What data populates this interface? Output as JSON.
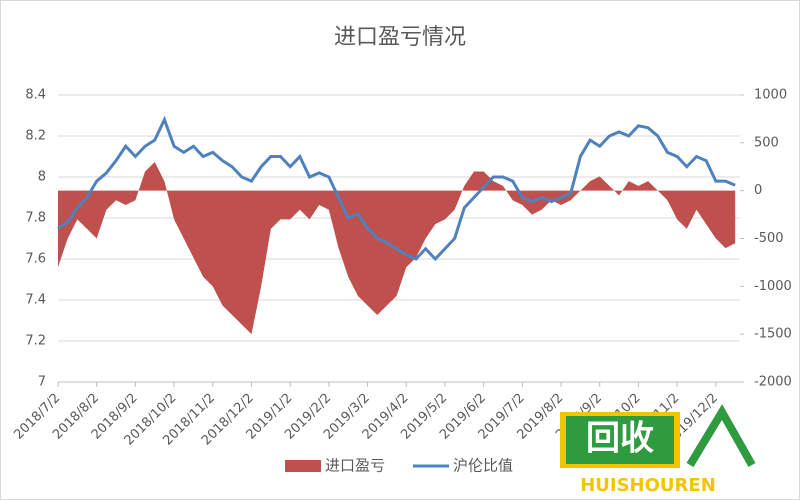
{
  "chart_data": {
    "type": "combo",
    "title": "进口盈亏情况",
    "categories": [
      "2018/7/2",
      null,
      null,
      null,
      "2018/8/2",
      null,
      null,
      null,
      "2018/9/2",
      null,
      null,
      null,
      "2018/10/2",
      null,
      null,
      null,
      "2018/11/2",
      null,
      null,
      null,
      "2018/12/2",
      null,
      null,
      null,
      "2019/1/2",
      null,
      null,
      null,
      "2019/2/2",
      null,
      null,
      null,
      "2019/3/2",
      null,
      null,
      null,
      "2019/4/2",
      null,
      null,
      null,
      "2019/5/2",
      null,
      null,
      null,
      "2019/6/2",
      null,
      null,
      null,
      "2019/7/2",
      null,
      null,
      null,
      "2019/8/2",
      null,
      null,
      null,
      "2019/9/2",
      null,
      null,
      null,
      "2019/10/2",
      null,
      null,
      null,
      "2019/11/2",
      null,
      null,
      null,
      "2019/12/2",
      null,
      null
    ],
    "series": [
      {
        "name": "进口盈亏",
        "kind": "area",
        "axis": "y2",
        "color": "#c0504d",
        "values": [
          -800,
          -500,
          -300,
          -400,
          -500,
          -200,
          -100,
          -150,
          -100,
          200,
          300,
          100,
          -300,
          -500,
          -700,
          -900,
          -1000,
          -1200,
          -1300,
          -1400,
          -1500,
          -1000,
          -400,
          -300,
          -300,
          -200,
          -300,
          -150,
          -200,
          -600,
          -900,
          -1100,
          -1200,
          -1300,
          -1200,
          -1100,
          -800,
          -700,
          -500,
          -350,
          -300,
          -200,
          50,
          200,
          200,
          100,
          50,
          -100,
          -150,
          -250,
          -200,
          -100,
          -150,
          -100,
          0,
          100,
          150,
          50,
          -50,
          100,
          50,
          100,
          0,
          -100,
          -300,
          -400,
          -200,
          -350,
          -500,
          -600,
          -550
        ]
      },
      {
        "name": "沪伦比值",
        "kind": "line",
        "color": "#4f81bd",
        "values": [
          7.75,
          7.78,
          7.85,
          7.9,
          7.98,
          8.02,
          8.08,
          8.15,
          8.1,
          8.15,
          8.18,
          8.28,
          8.15,
          8.12,
          8.15,
          8.1,
          8.12,
          8.08,
          8.05,
          8.0,
          7.98,
          8.05,
          8.1,
          8.1,
          8.05,
          8.1,
          8.0,
          8.02,
          8.0,
          7.9,
          7.8,
          7.82,
          7.75,
          7.7,
          7.68,
          7.65,
          7.62,
          7.6,
          7.65,
          7.6,
          7.65,
          7.7,
          7.85,
          7.9,
          7.95,
          8.0,
          8.0,
          7.98,
          7.9,
          7.88,
          7.9,
          7.88,
          7.9,
          7.92,
          8.1,
          8.18,
          8.15,
          8.2,
          8.22,
          8.2,
          8.25,
          8.24,
          8.2,
          8.12,
          8.1,
          8.05,
          8.1,
          8.08,
          7.98,
          7.98,
          7.96
        ]
      }
    ],
    "ylim": [
      7,
      8.4
    ],
    "yticks": [
      7,
      7.2,
      7.4,
      7.6,
      7.8,
      8,
      8.2,
      8.4
    ],
    "y2lim": [
      -2000,
      1000
    ],
    "y2ticks": [
      -2000,
      -1500,
      -1000,
      -500,
      0,
      500,
      1000
    ],
    "grid": true,
    "legend": "bottom"
  },
  "watermark": {
    "title": "回收",
    "subtitle": "HUISHOUREN"
  }
}
